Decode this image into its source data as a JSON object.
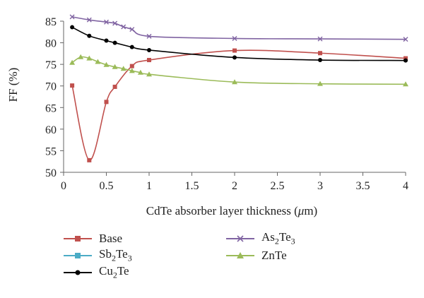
{
  "chart_data": {
    "type": "line",
    "xlabel_parts": [
      "CdTe absorber layer thickness (",
      "μ",
      "m)"
    ],
    "ylabel": "FF (%)",
    "xlim": [
      0,
      4
    ],
    "ylim": [
      50,
      85
    ],
    "xticks": [
      "0",
      "0.5",
      "1",
      "1.5",
      "2",
      "2.5",
      "3",
      "3.5",
      "4"
    ],
    "yticks": [
      "50",
      "55",
      "60",
      "65",
      "70",
      "75",
      "80",
      "85"
    ],
    "grid": false,
    "legend_position": "bottom",
    "series": [
      {
        "name": "Base",
        "color": "#c0504d",
        "marker": "square",
        "x": [
          0.1,
          0.3,
          0.5,
          0.6,
          0.8,
          1,
          2,
          3,
          4
        ],
        "y": [
          70.1,
          52.8,
          66.3,
          69.8,
          74.6,
          76.0,
          78.2,
          77.6,
          76.4
        ]
      },
      {
        "name": "Sb2Te3",
        "color": "#4bacc6",
        "marker": "square",
        "x": [],
        "y": []
      },
      {
        "name": "Cu2Te",
        "color": "#000000",
        "marker": "circle",
        "x": [
          0.1,
          0.3,
          0.5,
          0.6,
          0.8,
          1,
          2,
          3,
          4
        ],
        "y": [
          83.6,
          81.6,
          80.5,
          80.0,
          79.0,
          78.3,
          76.6,
          76.0,
          75.9
        ]
      },
      {
        "name": "As2Te3",
        "color": "#8064a2",
        "marker": "x",
        "x": [
          0.1,
          0.3,
          0.5,
          0.6,
          0.7,
          0.8,
          1,
          2,
          3,
          4
        ],
        "y": [
          86.0,
          85.3,
          84.8,
          84.5,
          83.7,
          83.1,
          81.5,
          81.0,
          80.9,
          80.8
        ]
      },
      {
        "name": "ZnTe",
        "color": "#9bbb59",
        "marker": "triangle",
        "x": [
          0.1,
          0.2,
          0.3,
          0.4,
          0.5,
          0.6,
          0.7,
          0.8,
          0.9,
          1,
          2,
          3,
          4
        ],
        "y": [
          75.4,
          76.7,
          76.4,
          75.6,
          74.9,
          74.4,
          74.0,
          73.5,
          73.1,
          72.7,
          70.9,
          70.5,
          70.4
        ]
      }
    ]
  },
  "legend": {
    "items": [
      {
        "id": "base",
        "name": "Base",
        "name_base": "Base",
        "name_sub": "",
        "name_rest": "",
        "color": "#c0504d",
        "marker": "square"
      },
      {
        "id": "as2te3",
        "name": "As2Te3",
        "name_base": "As",
        "name_sub": "2",
        "name_rest": "Te",
        "name_sub2": "3",
        "color": "#8064a2",
        "marker": "x"
      },
      {
        "id": "sb2te3",
        "name": "Sb2Te3",
        "name_base": "Sb",
        "name_sub": "2",
        "name_rest": "Te",
        "name_sub2": "3",
        "color": "#4bacc6",
        "marker": "square"
      },
      {
        "id": "znte",
        "name": "ZnTe",
        "name_base": "ZnTe",
        "name_sub": "",
        "name_rest": "",
        "color": "#9bbb59",
        "marker": "triangle"
      },
      {
        "id": "cu2te",
        "name": "Cu2Te",
        "name_base": "Cu",
        "name_sub": "2",
        "name_rest": "Te",
        "name_sub2": "",
        "color": "#000000",
        "marker": "circle"
      }
    ]
  }
}
